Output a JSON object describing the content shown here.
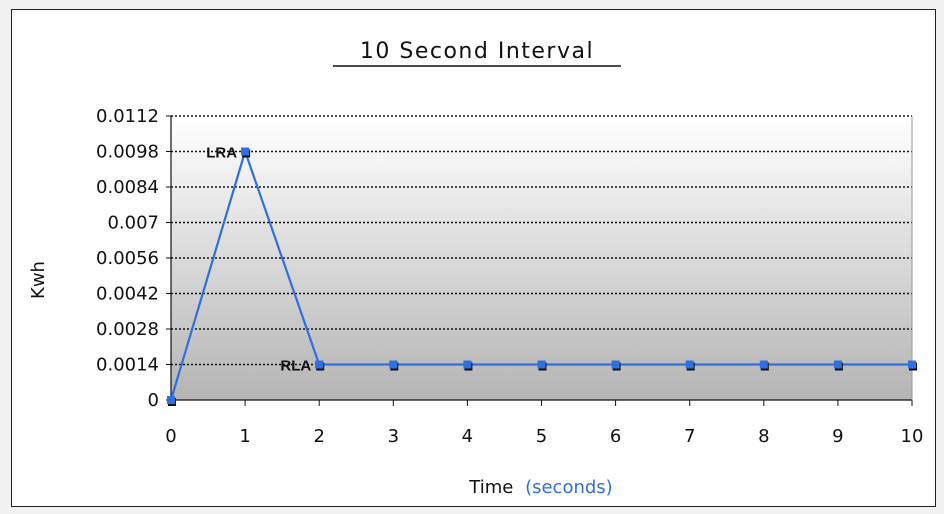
{
  "chart_data": {
    "type": "line",
    "title": "10 Second Interval",
    "xlabel": "Time",
    "xlabel_accent": "(seconds)",
    "ylabel": "Kwh",
    "x": [
      0,
      1,
      2,
      3,
      4,
      5,
      6,
      7,
      8,
      9,
      10
    ],
    "x_tick_labels": [
      "0",
      "1",
      "2",
      "3",
      "4",
      "5",
      "6",
      "7",
      "8",
      "9",
      "10"
    ],
    "y_tick_labels": [
      "0",
      "0.0014",
      "0.0028",
      "0.0042",
      "0.0056",
      "0.007",
      "0.0084",
      "0.0098",
      "0.0112"
    ],
    "ylim": [
      0,
      0.0112
    ],
    "xlim": [
      0,
      10
    ],
    "grid": "horizontal dotted",
    "series": [
      {
        "values": [
          0,
          0.0098,
          0.0014,
          0.0014,
          0.0014,
          0.0014,
          0.0014,
          0.0014,
          0.0014,
          0.0014,
          0.0014
        ]
      }
    ],
    "annotations": [
      {
        "x": 1,
        "y": 0.0098,
        "text": "LRA"
      },
      {
        "x": 2,
        "y": 0.0014,
        "text": "RLA"
      }
    ],
    "colors": {
      "line": "#2f6fe0",
      "marker_shadow": "#111111",
      "accent_text": "#2f6fe0",
      "plot_gradient_top": "#ffffff",
      "plot_gradient_bottom": "#b4b4b4"
    }
  }
}
